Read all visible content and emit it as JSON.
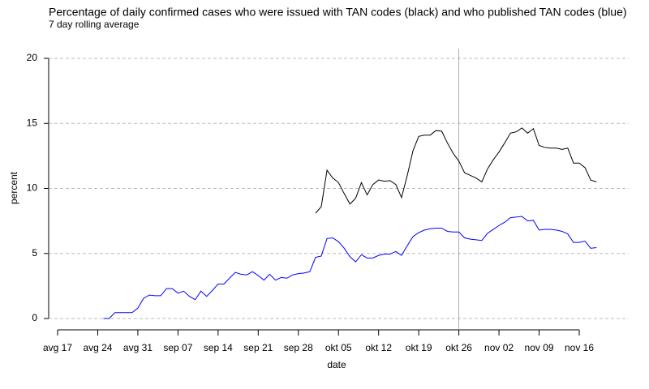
{
  "chart_data": {
    "type": "line",
    "title": "Percentage of daily confirmed cases who were issued with TAN codes (black) and who published TAN codes (blue)",
    "subtitle": "7 day rolling average",
    "x_label": "date",
    "y_label": "percent",
    "categories": [
      "avg 17",
      null,
      null,
      null,
      null,
      null,
      null,
      "avg 24",
      null,
      null,
      null,
      null,
      null,
      null,
      "avg 31",
      null,
      null,
      null,
      null,
      null,
      null,
      "sep 07",
      null,
      null,
      null,
      null,
      null,
      null,
      "sep 14",
      null,
      null,
      null,
      null,
      null,
      null,
      "sep 21",
      null,
      null,
      null,
      null,
      null,
      null,
      "sep 28",
      null,
      null,
      null,
      null,
      null,
      null,
      "okt 05",
      null,
      null,
      null,
      null,
      null,
      null,
      "okt 12",
      null,
      null,
      null,
      null,
      null,
      null,
      "okt 19",
      null,
      null,
      null,
      null,
      null,
      null,
      "okt 26",
      null,
      null,
      null,
      null,
      null,
      null,
      "nov 02",
      null,
      null,
      null,
      null,
      null,
      null,
      "nov 09",
      null,
      null,
      null,
      null,
      null,
      null,
      "nov 16",
      null,
      null,
      null
    ],
    "series": [
      {
        "color": "#000000",
        "values": [
          null,
          null,
          null,
          null,
          null,
          null,
          null,
          null,
          null,
          null,
          null,
          null,
          null,
          null,
          null,
          null,
          null,
          null,
          null,
          null,
          null,
          null,
          null,
          null,
          null,
          null,
          null,
          null,
          null,
          null,
          null,
          null,
          null,
          null,
          null,
          null,
          null,
          null,
          null,
          null,
          null,
          null,
          null,
          null,
          null,
          8.1,
          8.6,
          11.4,
          10.8,
          10.45,
          9.6,
          8.8,
          9.25,
          10.45,
          9.5,
          10.3,
          10.65,
          10.55,
          10.6,
          10.3,
          9.3,
          11.0,
          12.9,
          14.0,
          14.1,
          14.1,
          14.45,
          14.4,
          13.5,
          12.7,
          12.1,
          11.2,
          11.0,
          10.8,
          10.5,
          11.5,
          12.2,
          12.8,
          13.5,
          14.25,
          14.35,
          14.65,
          14.25,
          14.6,
          13.3,
          13.15,
          13.1,
          13.1,
          13.0,
          13.1,
          11.95,
          11.95,
          11.6,
          10.65,
          10.5
        ]
      },
      {
        "color": "#0000ff",
        "values": [
          null,
          null,
          null,
          null,
          null,
          null,
          null,
          null,
          0.0,
          0.0,
          0.45,
          0.45,
          0.45,
          0.45,
          0.8,
          1.55,
          1.8,
          1.75,
          1.75,
          2.3,
          2.3,
          1.95,
          2.1,
          1.7,
          1.45,
          2.1,
          1.7,
          2.15,
          2.65,
          2.65,
          3.1,
          3.55,
          3.4,
          3.35,
          3.6,
          3.3,
          2.95,
          3.4,
          2.95,
          3.15,
          3.1,
          3.35,
          3.45,
          3.5,
          3.6,
          4.7,
          4.8,
          6.15,
          6.2,
          5.9,
          5.4,
          4.75,
          4.35,
          4.9,
          4.65,
          4.65,
          4.85,
          4.95,
          4.95,
          5.15,
          4.85,
          5.6,
          6.3,
          6.6,
          6.8,
          6.9,
          6.95,
          6.95,
          6.7,
          6.65,
          6.65,
          6.2,
          6.1,
          6.05,
          6.0,
          6.55,
          6.85,
          7.15,
          7.4,
          7.75,
          7.8,
          7.85,
          7.5,
          7.55,
          6.8,
          6.85,
          6.85,
          6.8,
          6.7,
          6.5,
          5.85,
          5.85,
          5.95,
          5.4,
          5.45
        ]
      }
    ],
    "ylim": [
      0,
      20
    ],
    "yticks": [
      0,
      5,
      10,
      15,
      20
    ],
    "grid": true,
    "vline": "okt 26"
  }
}
